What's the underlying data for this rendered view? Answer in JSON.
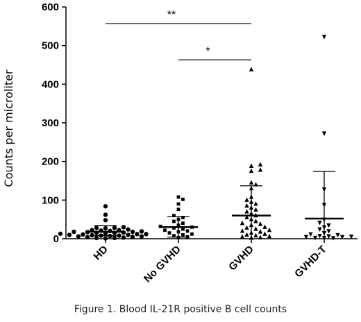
{
  "chart_data": {
    "type": "scatter",
    "ylabel": "Counts per microliter",
    "ylim": [
      0,
      600
    ],
    "yticks": [
      0,
      100,
      200,
      300,
      400,
      500,
      600
    ],
    "categories": [
      "HD",
      "No GVHD",
      "GVHD",
      "GVHD-T"
    ],
    "groups": [
      {
        "category": "HD",
        "marker": "circle",
        "mean": 18,
        "sd": [
          8,
          34
        ],
        "values": [
          84,
          62,
          48,
          30,
          28,
          28,
          27,
          24,
          22,
          22,
          21,
          20,
          19,
          18,
          18,
          17,
          16,
          15,
          15,
          14,
          13,
          12,
          12,
          11,
          10,
          10,
          9,
          8,
          8,
          7,
          6,
          6,
          5,
          4,
          3,
          2,
          2,
          1
        ]
      },
      {
        "category": "No GVHD",
        "marker": "square",
        "mean": 30,
        "sd": [
          4,
          57
        ],
        "values": [
          108,
          102,
          90,
          76,
          60,
          55,
          50,
          45,
          40,
          35,
          32,
          30,
          28,
          25,
          22,
          20,
          18,
          15,
          12,
          10,
          8,
          5,
          3
        ]
      },
      {
        "category": "GVHD",
        "marker": "triangle-up",
        "mean": 60,
        "sd": [
          0,
          137
        ],
        "values": [
          438,
          192,
          188,
          178,
          175,
          145,
          140,
          130,
          108,
          100,
          95,
          90,
          85,
          80,
          75,
          70,
          65,
          60,
          55,
          50,
          45,
          40,
          38,
          35,
          30,
          28,
          25,
          22,
          20,
          18,
          15,
          12,
          10,
          8,
          6,
          5,
          3,
          2
        ]
      },
      {
        "category": "GVHD-T",
        "marker": "triangle-down",
        "mean": 52,
        "sd": [
          0,
          174
        ],
        "values": [
          523,
          273,
          128,
          88,
          50,
          42,
          35,
          30,
          25,
          20,
          15,
          12,
          10,
          8,
          7,
          6,
          5,
          5,
          3,
          2,
          2
        ]
      }
    ],
    "annotations": [
      {
        "label": "**",
        "from": "HD",
        "to": "GVHD",
        "y": 557
      },
      {
        "label": "*",
        "from": "No GVHD",
        "to": "GVHD",
        "y": 463
      }
    ],
    "grid": false,
    "legend": "none"
  },
  "caption": "Figure 1. Blood IL-21R positive B cell counts"
}
